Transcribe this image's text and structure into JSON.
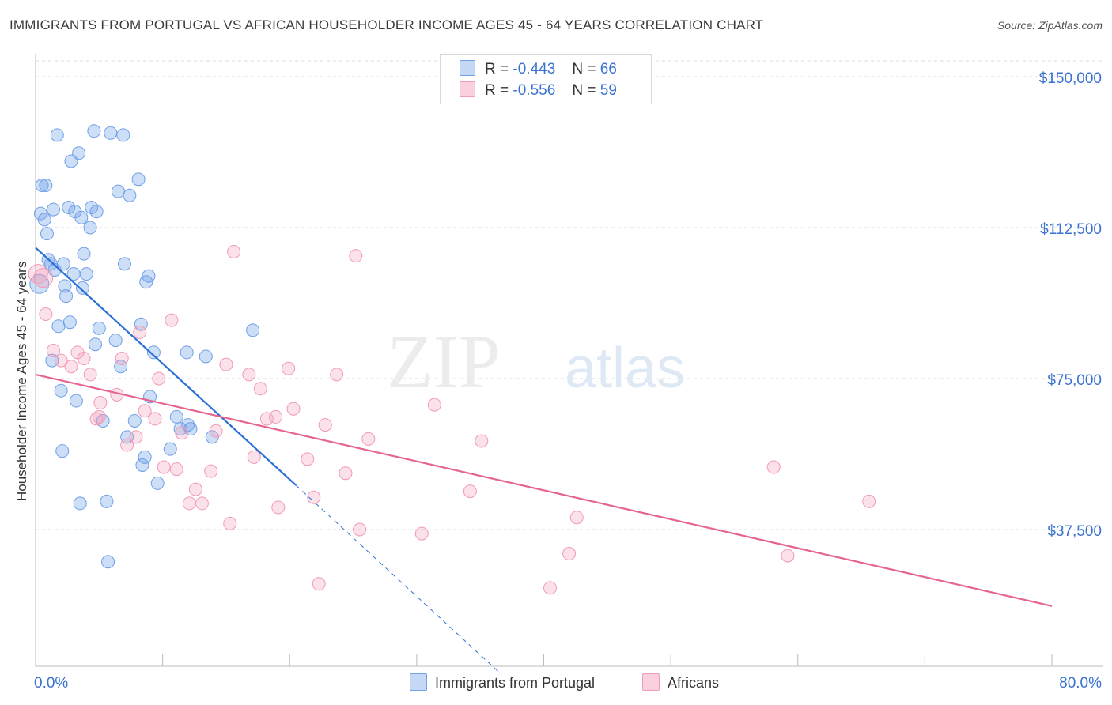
{
  "title": "IMMIGRANTS FROM PORTUGAL VS AFRICAN HOUSEHOLDER INCOME AGES 45 - 64 YEARS CORRELATION CHART",
  "source": "Source: ZipAtlas.com",
  "watermark": {
    "zip": "ZIP",
    "atlas": "atlas"
  },
  "legend": {
    "r_label": "R =",
    "n_label": "N =",
    "items": [
      {
        "r": "-0.443",
        "n": "66",
        "color": "#6fa0e8"
      },
      {
        "r": "-0.556",
        "n": "59",
        "color": "#f29ab6"
      }
    ]
  },
  "colors": {
    "portugal": "#6fa0e8",
    "africans": "#f29ab6",
    "portugal_line": "#2c6fd6",
    "africans_line": "#e56491",
    "grid": "#dddddd",
    "tick_label": "#3a72d0"
  },
  "chart_data": {
    "type": "scatter",
    "title": "IMMIGRANTS FROM PORTUGAL VS AFRICAN HOUSEHOLDER INCOME AGES 45 - 64 YEARS CORRELATION CHART",
    "xlabel": "",
    "ylabel": "Householder Income Ages 45 - 64 years",
    "xlim": [
      0,
      80
    ],
    "ylim": [
      0,
      157000
    ],
    "x_tick_labels": [
      "0.0%",
      "80.0%"
    ],
    "y_ticks": [
      {
        "value": 37500,
        "label": "$37,500"
      },
      {
        "value": 75000,
        "label": "$75,000"
      },
      {
        "value": 112500,
        "label": "$112,500"
      },
      {
        "value": 150000,
        "label": "$150,000"
      }
    ],
    "grid": true,
    "legend_position": "top-center",
    "series": [
      {
        "name": "Immigrants from Portugal",
        "color": "#6fa0e8",
        "trend": {
          "x": [
            0.0,
            20.5
          ],
          "y": [
            107500,
            48500
          ],
          "dashed_to": [
            36.5,
            2000
          ]
        },
        "points": [
          [
            0.3,
            98500
          ],
          [
            0.5,
            123000
          ],
          [
            0.4,
            116000
          ],
          [
            0.7,
            114500
          ],
          [
            0.8,
            123000
          ],
          [
            0.9,
            111000
          ],
          [
            1.0,
            104500
          ],
          [
            1.2,
            103500
          ],
          [
            1.3,
            79500
          ],
          [
            1.4,
            117000
          ],
          [
            1.5,
            102000
          ],
          [
            1.7,
            135500
          ],
          [
            1.8,
            88000
          ],
          [
            2.0,
            72000
          ],
          [
            2.1,
            57000
          ],
          [
            2.2,
            103500
          ],
          [
            2.3,
            98000
          ],
          [
            2.4,
            95500
          ],
          [
            2.6,
            117500
          ],
          [
            2.7,
            89000
          ],
          [
            2.8,
            129000
          ],
          [
            3.0,
            101000
          ],
          [
            3.1,
            116500
          ],
          [
            3.2,
            69500
          ],
          [
            3.4,
            131000
          ],
          [
            3.5,
            44000
          ],
          [
            3.6,
            115000
          ],
          [
            3.7,
            97500
          ],
          [
            3.8,
            106000
          ],
          [
            4.0,
            101000
          ],
          [
            4.3,
            112500
          ],
          [
            4.4,
            117500
          ],
          [
            4.6,
            136500
          ],
          [
            4.7,
            83500
          ],
          [
            4.8,
            116500
          ],
          [
            5.0,
            87500
          ],
          [
            5.3,
            64500
          ],
          [
            5.6,
            44500
          ],
          [
            5.7,
            29500
          ],
          [
            5.9,
            136000
          ],
          [
            6.3,
            84500
          ],
          [
            6.5,
            121500
          ],
          [
            6.7,
            78000
          ],
          [
            6.9,
            135500
          ],
          [
            7.0,
            103500
          ],
          [
            7.2,
            60500
          ],
          [
            7.4,
            120500
          ],
          [
            7.8,
            64500
          ],
          [
            8.1,
            124500
          ],
          [
            8.3,
            88500
          ],
          [
            8.4,
            53500
          ],
          [
            8.6,
            55500
          ],
          [
            8.7,
            99000
          ],
          [
            8.9,
            100500
          ],
          [
            9.3,
            81500
          ],
          [
            9.6,
            49000
          ],
          [
            10.6,
            57500
          ],
          [
            11.1,
            65500
          ],
          [
            11.4,
            62500
          ],
          [
            11.9,
            81500
          ],
          [
            12.0,
            63500
          ],
          [
            12.2,
            62500
          ],
          [
            13.4,
            80500
          ],
          [
            13.9,
            60500
          ],
          [
            17.1,
            87000
          ],
          [
            9.0,
            70500
          ]
        ]
      },
      {
        "name": "Africans",
        "color": "#f29ab6",
        "trend": {
          "x": [
            0.0,
            80.0
          ],
          "y": [
            76000,
            18500
          ]
        },
        "points": [
          [
            0.2,
            101000
          ],
          [
            0.8,
            91000
          ],
          [
            1.4,
            82000
          ],
          [
            2.0,
            79500
          ],
          [
            2.8,
            78000
          ],
          [
            3.3,
            81500
          ],
          [
            3.8,
            80000
          ],
          [
            4.3,
            76000
          ],
          [
            4.8,
            65000
          ],
          [
            5.0,
            65500
          ],
          [
            5.1,
            69000
          ],
          [
            6.4,
            71000
          ],
          [
            6.8,
            80000
          ],
          [
            7.2,
            58500
          ],
          [
            7.9,
            60500
          ],
          [
            8.2,
            86500
          ],
          [
            8.6,
            67000
          ],
          [
            9.4,
            65000
          ],
          [
            9.7,
            75000
          ],
          [
            10.1,
            53000
          ],
          [
            10.7,
            89500
          ],
          [
            11.1,
            52500
          ],
          [
            11.5,
            61500
          ],
          [
            12.1,
            44000
          ],
          [
            12.6,
            47500
          ],
          [
            13.1,
            44000
          ],
          [
            13.8,
            52000
          ],
          [
            14.2,
            62000
          ],
          [
            15.0,
            78500
          ],
          [
            15.3,
            39000
          ],
          [
            15.6,
            106500
          ],
          [
            16.8,
            76000
          ],
          [
            17.2,
            55500
          ],
          [
            17.7,
            72500
          ],
          [
            18.2,
            65000
          ],
          [
            18.9,
            65500
          ],
          [
            19.1,
            43000
          ],
          [
            19.9,
            77500
          ],
          [
            20.3,
            67500
          ],
          [
            21.4,
            55000
          ],
          [
            21.9,
            45500
          ],
          [
            22.3,
            24000
          ],
          [
            22.8,
            63500
          ],
          [
            23.7,
            76000
          ],
          [
            24.4,
            51500
          ],
          [
            25.2,
            105500
          ],
          [
            25.5,
            37500
          ],
          [
            26.2,
            60000
          ],
          [
            30.4,
            36500
          ],
          [
            31.4,
            68500
          ],
          [
            34.2,
            47000
          ],
          [
            35.1,
            59500
          ],
          [
            40.5,
            23000
          ],
          [
            42.0,
            31500
          ],
          [
            42.6,
            40500
          ],
          [
            58.1,
            53000
          ],
          [
            59.2,
            31000
          ],
          [
            65.6,
            44500
          ],
          [
            0.6,
            100000
          ]
        ]
      }
    ]
  }
}
